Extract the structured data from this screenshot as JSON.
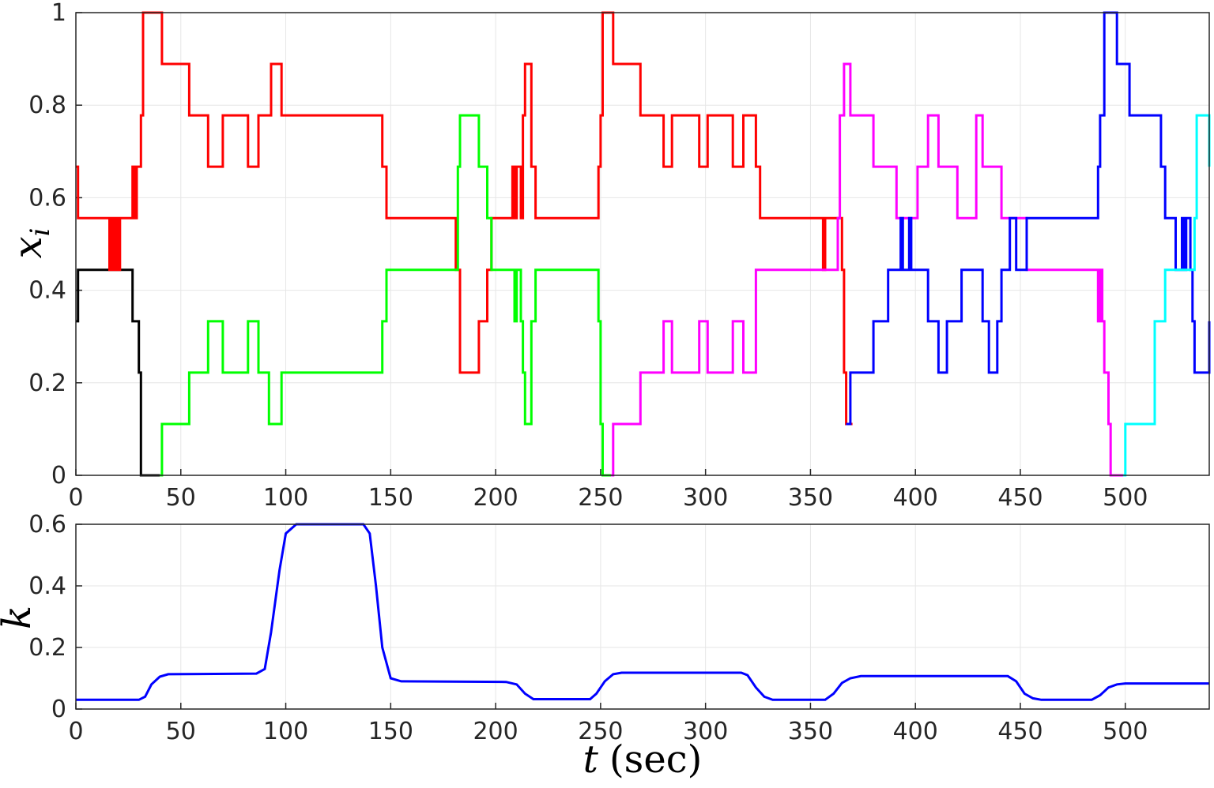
{
  "colors": {
    "red": "#ff0000",
    "green": "#00ff00",
    "black": "#000000",
    "magenta": "#ff00ff",
    "blue": "#0000ff",
    "cyan": "#00ffff"
  },
  "chart_data": [
    {
      "type": "line",
      "step": true,
      "ylabel_main": "x",
      "ylabel_sub": "i",
      "xlim": [
        0,
        540
      ],
      "ylim": [
        0,
        1
      ],
      "grid": true,
      "x_ticks": [
        "0",
        "50",
        "100",
        "150",
        "200",
        "250",
        "300",
        "350",
        "400",
        "450",
        "500"
      ],
      "y_ticks": [
        "0",
        "0.2",
        "0.4",
        "0.6",
        "0.8",
        "1"
      ],
      "series": [
        {
          "color": "black",
          "points": [
            [
              0,
              0.333
            ],
            [
              1,
              0.444
            ],
            [
              27,
              0.333
            ],
            [
              30,
              0.222
            ],
            [
              31,
              0.0
            ],
            [
              40,
              0.0
            ]
          ]
        },
        {
          "color": "red",
          "points": [
            [
              0,
              0.667
            ],
            [
              1,
              0.556
            ],
            [
              16,
              0.444
            ],
            [
              17,
              0.556
            ],
            [
              18,
              0.444
            ],
            [
              19,
              0.556
            ],
            [
              20,
              0.444
            ],
            [
              21,
              0.556
            ],
            [
              27,
              0.667
            ],
            [
              28,
              0.556
            ],
            [
              29,
              0.667
            ],
            [
              31,
              0.778
            ],
            [
              32,
              1.0
            ],
            [
              41,
              0.889
            ],
            [
              54,
              0.778
            ],
            [
              63,
              0.667
            ],
            [
              70,
              0.778
            ],
            [
              82,
              0.667
            ],
            [
              87,
              0.778
            ],
            [
              93,
              0.889
            ],
            [
              98,
              0.778
            ],
            [
              146,
              0.667
            ],
            [
              148,
              0.556
            ],
            [
              181,
              0.444
            ],
            [
              183,
              0.222
            ],
            [
              192,
              0.333
            ],
            [
              196,
              0.444
            ],
            [
              198,
              0.556
            ],
            [
              208,
              0.667
            ],
            [
              209,
              0.556
            ],
            [
              210,
              0.667
            ],
            [
              212,
              0.556
            ],
            [
              213,
              0.778
            ],
            [
              214,
              0.889
            ],
            [
              217,
              0.667
            ],
            [
              219,
              0.556
            ],
            [
              249,
              0.667
            ],
            [
              250,
              0.778
            ],
            [
              251,
              1.0
            ],
            [
              256,
              0.889
            ],
            [
              269,
              0.778
            ],
            [
              280,
              0.667
            ],
            [
              284,
              0.778
            ],
            [
              297,
              0.667
            ],
            [
              301,
              0.778
            ],
            [
              313,
              0.667
            ],
            [
              318,
              0.778
            ],
            [
              324,
              0.667
            ],
            [
              326,
              0.556
            ],
            [
              356,
              0.444
            ],
            [
              357,
              0.556
            ],
            [
              365,
              0.444
            ],
            [
              366,
              0.222
            ],
            [
              367,
              0.111
            ],
            [
              370,
              0.111
            ]
          ]
        },
        {
          "color": "green",
          "points": [
            [
              40,
              0.0
            ],
            [
              41,
              0.111
            ],
            [
              54,
              0.222
            ],
            [
              63,
              0.333
            ],
            [
              70,
              0.222
            ],
            [
              82,
              0.333
            ],
            [
              87,
              0.222
            ],
            [
              92,
              0.111
            ],
            [
              98,
              0.222
            ],
            [
              146,
              0.333
            ],
            [
              148,
              0.444
            ],
            [
              182,
              0.667
            ],
            [
              183,
              0.778
            ],
            [
              192,
              0.667
            ],
            [
              196,
              0.556
            ],
            [
              198,
              0.444
            ],
            [
              209,
              0.333
            ],
            [
              210,
              0.444
            ],
            [
              212,
              0.333
            ],
            [
              213,
              0.222
            ],
            [
              214,
              0.111
            ],
            [
              217,
              0.333
            ],
            [
              219,
              0.444
            ],
            [
              249,
              0.333
            ],
            [
              250,
              0.111
            ],
            [
              251,
              0.0
            ],
            [
              255,
              0.0
            ]
          ]
        },
        {
          "color": "magenta",
          "points": [
            [
              255,
              0.0
            ],
            [
              256,
              0.111
            ],
            [
              269,
              0.222
            ],
            [
              280,
              0.333
            ],
            [
              284,
              0.222
            ],
            [
              297,
              0.333
            ],
            [
              301,
              0.222
            ],
            [
              313,
              0.333
            ],
            [
              318,
              0.222
            ],
            [
              324,
              0.444
            ],
            [
              363,
              0.556
            ],
            [
              364,
              0.778
            ],
            [
              366,
              0.889
            ],
            [
              369,
              0.778
            ],
            [
              380,
              0.667
            ],
            [
              391,
              0.556
            ],
            [
              401,
              0.667
            ],
            [
              406,
              0.778
            ],
            [
              411,
              0.667
            ],
            [
              420,
              0.556
            ],
            [
              429,
              0.778
            ],
            [
              432,
              0.667
            ],
            [
              441,
              0.556
            ],
            [
              453,
              0.444
            ],
            [
              487,
              0.333
            ],
            [
              488,
              0.444
            ],
            [
              489,
              0.333
            ],
            [
              490,
              0.222
            ],
            [
              492,
              0.111
            ],
            [
              493,
              0.0
            ],
            [
              499,
              0.0
            ]
          ]
        },
        {
          "color": "blue",
          "points": [
            [
              367,
              0.111
            ],
            [
              369,
              0.222
            ],
            [
              380,
              0.333
            ],
            [
              387,
              0.444
            ],
            [
              393,
              0.556
            ],
            [
              394,
              0.444
            ],
            [
              397,
              0.556
            ],
            [
              398,
              0.444
            ],
            [
              406,
              0.333
            ],
            [
              411,
              0.222
            ],
            [
              415,
              0.333
            ],
            [
              422,
              0.444
            ],
            [
              432,
              0.333
            ],
            [
              435,
              0.222
            ],
            [
              439,
              0.333
            ],
            [
              441,
              0.444
            ],
            [
              445,
              0.556
            ],
            [
              448,
              0.444
            ],
            [
              453,
              0.556
            ],
            [
              487,
              0.667
            ],
            [
              488,
              0.778
            ],
            [
              490,
              1.0
            ],
            [
              496,
              0.889
            ],
            [
              502,
              0.778
            ],
            [
              517,
              0.667
            ],
            [
              519,
              0.556
            ],
            [
              524,
              0.444
            ],
            [
              527,
              0.556
            ],
            [
              528,
              0.444
            ],
            [
              529,
              0.556
            ],
            [
              531,
              0.444
            ],
            [
              532,
              0.333
            ],
            [
              533,
              0.222
            ],
            [
              540,
              0.333
            ]
          ]
        },
        {
          "color": "cyan",
          "points": [
            [
              499,
              0.0
            ],
            [
              500,
              0.111
            ],
            [
              514,
              0.333
            ],
            [
              519,
              0.444
            ],
            [
              533,
              0.556
            ],
            [
              534,
              0.778
            ],
            [
              540,
              0.667
            ]
          ]
        }
      ]
    },
    {
      "type": "line",
      "ylabel": "k",
      "xlabel_var": "t",
      "xlabel_unit": "(sec)",
      "xlim": [
        0,
        540
      ],
      "ylim": [
        0,
        0.6
      ],
      "grid": true,
      "x_ticks": [
        "0",
        "50",
        "100",
        "150",
        "200",
        "250",
        "300",
        "350",
        "400",
        "450",
        "500"
      ],
      "y_ticks": [
        "0",
        "0.2",
        "0.4",
        "0.6"
      ],
      "series": [
        {
          "color": "blue",
          "points": [
            [
              0,
              0.03
            ],
            [
              30,
              0.03
            ],
            [
              33,
              0.04
            ],
            [
              36,
              0.08
            ],
            [
              40,
              0.105
            ],
            [
              44,
              0.113
            ],
            [
              86,
              0.115
            ],
            [
              90,
              0.13
            ],
            [
              93,
              0.25
            ],
            [
              97,
              0.45
            ],
            [
              100,
              0.57
            ],
            [
              105,
              0.6
            ],
            [
              137,
              0.6
            ],
            [
              140,
              0.57
            ],
            [
              143,
              0.4
            ],
            [
              146,
              0.2
            ],
            [
              150,
              0.1
            ],
            [
              155,
              0.09
            ],
            [
              205,
              0.088
            ],
            [
              210,
              0.08
            ],
            [
              214,
              0.05
            ],
            [
              218,
              0.032
            ],
            [
              245,
              0.032
            ],
            [
              248,
              0.05
            ],
            [
              252,
              0.09
            ],
            [
              256,
              0.113
            ],
            [
              260,
              0.118
            ],
            [
              317,
              0.118
            ],
            [
              320,
              0.11
            ],
            [
              324,
              0.07
            ],
            [
              328,
              0.04
            ],
            [
              332,
              0.03
            ],
            [
              357,
              0.03
            ],
            [
              361,
              0.05
            ],
            [
              365,
              0.085
            ],
            [
              369,
              0.1
            ],
            [
              374,
              0.107
            ],
            [
              444,
              0.107
            ],
            [
              448,
              0.09
            ],
            [
              452,
              0.05
            ],
            [
              456,
              0.035
            ],
            [
              460,
              0.03
            ],
            [
              484,
              0.03
            ],
            [
              488,
              0.045
            ],
            [
              492,
              0.07
            ],
            [
              496,
              0.08
            ],
            [
              500,
              0.083
            ],
            [
              540,
              0.083
            ]
          ]
        }
      ]
    }
  ]
}
